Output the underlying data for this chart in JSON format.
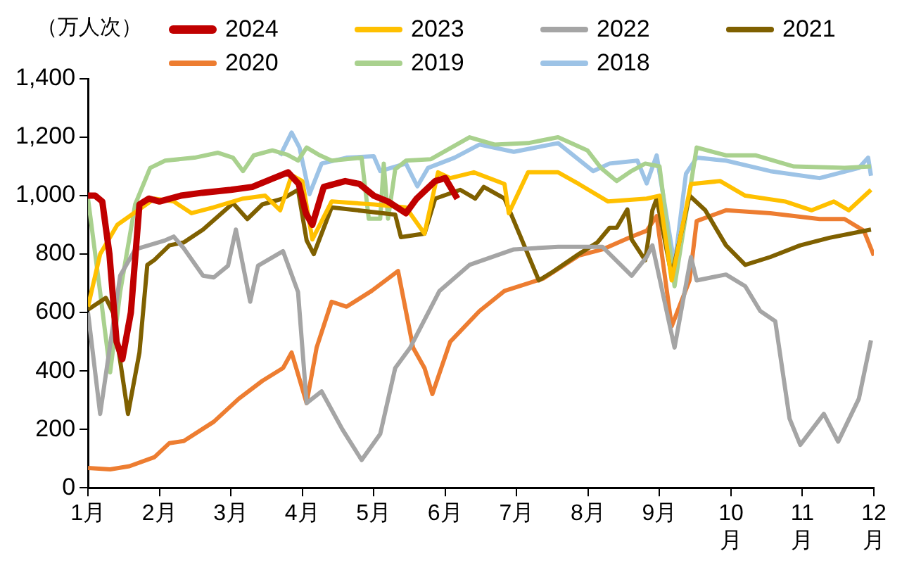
{
  "chart_data": {
    "type": "line",
    "ylabel": "（万人次）",
    "xlim": [
      1,
      12
    ],
    "xticks": [
      {
        "value": 1,
        "label": "1月"
      },
      {
        "value": 2,
        "label": "2月"
      },
      {
        "value": 3,
        "label": "3月"
      },
      {
        "value": 4,
        "label": "4月"
      },
      {
        "value": 5,
        "label": "5月"
      },
      {
        "value": 6,
        "label": "6月"
      },
      {
        "value": 7,
        "label": "7月"
      },
      {
        "value": 8,
        "label": "8月"
      },
      {
        "value": 9,
        "label": "9月"
      },
      {
        "value": 10,
        "label": "10月"
      },
      {
        "value": 11,
        "label": "11月"
      },
      {
        "value": 12,
        "label": "12月"
      }
    ],
    "ylim": [
      0,
      1400
    ],
    "yticks": [
      0,
      200,
      400,
      600,
      800,
      {
        "value": 1000,
        "label": "1,000"
      },
      {
        "value": 1200,
        "label": "1,200"
      },
      {
        "value": 1400,
        "label": "1,400"
      }
    ],
    "grid": false,
    "legend": "top",
    "marker": "none",
    "line_style": "solid",
    "series": [
      {
        "name": "2024",
        "color": "#c00000",
        "x": [
          1.0,
          1.1,
          1.2,
          1.3,
          1.4,
          1.48,
          1.6,
          1.72,
          1.85,
          2.0,
          2.3,
          2.6,
          3.0,
          3.3,
          3.6,
          3.8,
          3.95,
          4.05,
          4.14,
          4.3,
          4.6,
          4.8,
          5.0,
          5.2,
          5.45,
          5.6,
          5.86,
          6.0,
          6.17
        ],
        "values": [
          1000,
          1000,
          980,
          800,
          500,
          440,
          600,
          970,
          990,
          980,
          1000,
          1010,
          1020,
          1030,
          1060,
          1080,
          1040,
          940,
          900,
          1030,
          1050,
          1040,
          1000,
          980,
          940,
          990,
          1050,
          1060,
          990
        ]
      },
      {
        "name": "2023",
        "color": "#ffc000",
        "x": [
          1.0,
          1.17,
          1.41,
          1.93,
          2.2,
          2.45,
          2.76,
          3.17,
          3.48,
          3.69,
          3.85,
          4.0,
          4.14,
          4.41,
          5.0,
          5.45,
          5.71,
          5.9,
          6.07,
          6.4,
          6.83,
          6.89,
          7.16,
          7.58,
          7.87,
          8.28,
          8.82,
          9.0,
          9.17,
          9.44,
          9.85,
          10.2,
          10.76,
          11.13,
          11.44,
          11.65,
          11.96
        ],
        "values": [
          620,
          800,
          900,
          990,
          980,
          940,
          960,
          990,
          1000,
          950,
          1070,
          1050,
          850,
          980,
          970,
          960,
          870,
          1080,
          1060,
          1080,
          1040,
          940,
          1080,
          1080,
          1040,
          980,
          990,
          1000,
          710,
          1040,
          1050,
          1000,
          980,
          950,
          980,
          950,
          1020
        ]
      },
      {
        "name": "2022",
        "color": "#a5a5a5",
        "x": [
          1.0,
          1.17,
          1.45,
          1.66,
          2.08,
          2.2,
          2.34,
          2.61,
          2.76,
          2.96,
          3.07,
          3.27,
          3.38,
          3.73,
          3.94,
          4.06,
          4.27,
          4.56,
          4.83,
          5.09,
          5.3,
          5.51,
          5.92,
          6.34,
          6.96,
          7.58,
          8.2,
          8.61,
          8.82,
          8.9,
          9.21,
          9.44,
          9.52,
          9.93,
          10.2,
          10.41,
          10.62,
          10.82,
          10.97,
          11.3,
          11.5,
          11.79,
          11.96
        ],
        "values": [
          600,
          253,
          726,
          816,
          847,
          860,
          820,
          726,
          720,
          760,
          884,
          637,
          760,
          810,
          670,
          290,
          330,
          200,
          95,
          184,
          410,
          480,
          674,
          763,
          816,
          825,
          825,
          726,
          790,
          830,
          480,
          790,
          710,
          730,
          690,
          605,
          570,
          237,
          147,
          253,
          158,
          305,
          505
        ]
      },
      {
        "name": "2021",
        "color": "#7f6000",
        "x": [
          1.0,
          1.25,
          1.35,
          1.56,
          1.72,
          1.83,
          1.93,
          2.14,
          2.34,
          2.61,
          3.03,
          3.23,
          3.44,
          3.73,
          3.94,
          4.06,
          4.16,
          4.41,
          5.3,
          5.38,
          5.71,
          5.86,
          6.21,
          6.42,
          6.54,
          6.83,
          7.04,
          7.31,
          7.51,
          7.87,
          8.13,
          8.3,
          8.4,
          8.55,
          8.61,
          8.8,
          8.9,
          8.96,
          9.17,
          9.42,
          9.64,
          9.93,
          10.2,
          10.55,
          10.97,
          11.38,
          11.96
        ],
        "values": [
          610,
          650,
          600,
          253,
          463,
          763,
          780,
          830,
          840,
          884,
          974,
          920,
          970,
          990,
          1020,
          847,
          800,
          960,
          935,
          858,
          870,
          990,
          1020,
          990,
          1030,
          990,
          868,
          710,
          740,
          800,
          840,
          890,
          890,
          953,
          850,
          779,
          950,
          990,
          726,
          1000,
          950,
          830,
          763,
          790,
          830,
          856,
          884
        ]
      },
      {
        "name": "2020",
        "color": "#ed7d31",
        "x": [
          1.0,
          1.31,
          1.58,
          1.93,
          2.14,
          2.34,
          2.76,
          3.11,
          3.44,
          3.73,
          3.85,
          4.06,
          4.2,
          4.41,
          4.62,
          4.97,
          5.34,
          5.55,
          5.71,
          5.82,
          6.07,
          6.48,
          6.83,
          7.37,
          7.87,
          8.2,
          8.61,
          8.82,
          8.96,
          9.17,
          9.42,
          9.52,
          9.93,
          10.55,
          11.24,
          11.59,
          11.86,
          12.0
        ],
        "values": [
          68,
          63,
          74,
          105,
          153,
          160,
          226,
          305,
          366,
          410,
          463,
          290,
          480,
          637,
          620,
          674,
          742,
          480,
          410,
          321,
          500,
          605,
          674,
          716,
          795,
          816,
          860,
          880,
          930,
          553,
          710,
          913,
          950,
          940,
          920,
          920,
          880,
          795
        ]
      },
      {
        "name": "2019",
        "color": "#a9d18e",
        "x": [
          1.0,
          1.17,
          1.31,
          1.45,
          1.66,
          1.87,
          2.08,
          2.49,
          2.82,
          3.03,
          3.17,
          3.32,
          3.58,
          3.79,
          3.94,
          4.06,
          4.23,
          4.41,
          4.83,
          4.93,
          5.09,
          5.14,
          5.2,
          5.3,
          5.45,
          5.8,
          6.34,
          6.69,
          7.16,
          7.58,
          7.99,
          8.18,
          8.4,
          8.61,
          8.8,
          9.0,
          9.21,
          9.52,
          9.93,
          10.35,
          10.88,
          11.59,
          11.96
        ],
        "values": [
          990,
          670,
          395,
          670,
          970,
          1095,
          1120,
          1130,
          1147,
          1130,
          1084,
          1138,
          1155,
          1140,
          1120,
          1165,
          1140,
          1120,
          1130,
          921,
          921,
          1110,
          921,
          1090,
          1120,
          1125,
          1200,
          1175,
          1180,
          1200,
          1155,
          1095,
          1050,
          1085,
          1110,
          1100,
          690,
          1165,
          1138,
          1138,
          1100,
          1095,
          1100
        ]
      },
      {
        "name": "2018",
        "color": "#9dc3e6",
        "x": [
          3.69,
          3.85,
          3.96,
          4.1,
          4.27,
          4.62,
          5.0,
          5.09,
          5.45,
          5.61,
          5.76,
          6.13,
          6.48,
          6.96,
          7.58,
          8.07,
          8.3,
          8.69,
          8.82,
          8.96,
          9.21,
          9.37,
          9.52,
          9.93,
          10.55,
          11.24,
          11.79,
          11.92,
          11.96
        ],
        "values": [
          1137,
          1216,
          1165,
          1005,
          1110,
          1130,
          1135,
          1084,
          1110,
          1032,
          1095,
          1130,
          1175,
          1150,
          1180,
          1084,
          1110,
          1120,
          1042,
          1138,
          763,
          1075,
          1130,
          1120,
          1084,
          1060,
          1095,
          1130,
          1068
        ]
      }
    ]
  }
}
